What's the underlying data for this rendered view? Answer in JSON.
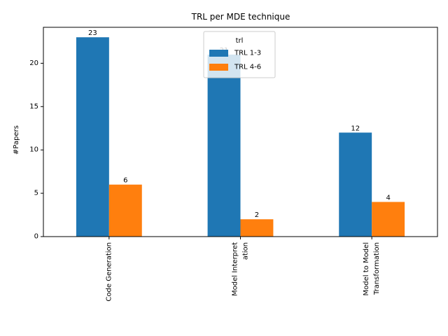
{
  "chart_data": {
    "type": "bar",
    "title": "TRL per MDE technique",
    "xlabel": "",
    "ylabel": "#Papers",
    "categories": [
      [
        "Code Generation"
      ],
      [
        "Model Interpret",
        "ation"
      ],
      [
        "Model to Model",
        "Transformation"
      ]
    ],
    "series": [
      {
        "name": "TRL 1-3",
        "color": "#1f77b4",
        "values": [
          23,
          21,
          12
        ]
      },
      {
        "name": "TRL 4-6",
        "color": "#ff7f0e",
        "values": [
          6,
          2,
          4
        ]
      }
    ],
    "ylim": [
      0,
      24.15
    ],
    "yticks": [
      0,
      5,
      10,
      15,
      20
    ],
    "legend": {
      "title": "trl",
      "placement": "upper-center"
    },
    "grid": false
  }
}
